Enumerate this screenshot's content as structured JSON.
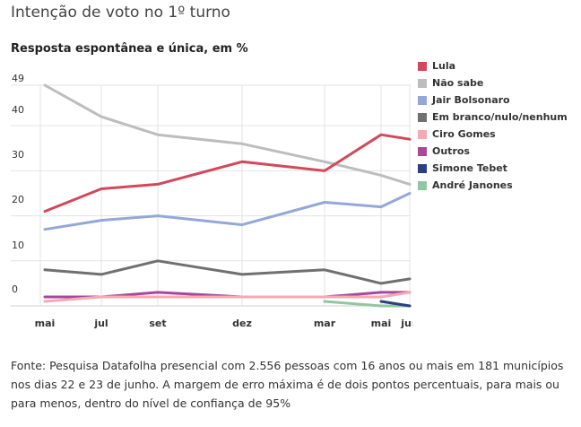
{
  "title": "Intenção de voto no 1º turno",
  "subtitle": "Resposta espontânea e única, em %",
  "source": "Fonte: Pesquisa Datafolha presencial com 2.556 pessoas com 16 anos ou mais em 181 municípios nos dias 22 e 23 de junho. A margem de erro máxima é de dois pontos percentuais, para mais ou para menos, dentro do nível de confiança de 95%",
  "chart_data": {
    "type": "line",
    "title": "Intenção de voto no 1º turno",
    "subtitle": "Resposta espontânea e única, em %",
    "x_ticks": [
      "mai",
      "jul",
      "set",
      "dez",
      "mar",
      "mai",
      "jun"
    ],
    "y_ticks": [
      "49",
      "40",
      "30",
      "20",
      "10",
      "0"
    ],
    "ylim": [
      0,
      49
    ],
    "grid": true,
    "legend_position": "right",
    "series": [
      {
        "name": "Lula",
        "color": "#d1495b",
        "start": 0,
        "values": [
          21,
          26,
          27,
          32,
          30,
          38,
          37
        ]
      },
      {
        "name": "Não sabe",
        "color": "#bdbdbd",
        "start": 0,
        "values": [
          49,
          42,
          38,
          36,
          32,
          29,
          27
        ]
      },
      {
        "name": "Jair Bolsonaro",
        "color": "#94a8d8",
        "start": 0,
        "values": [
          17,
          19,
          20,
          18,
          23,
          22,
          25
        ]
      },
      {
        "name": "Em branco/nulo/nenhum",
        "color": "#707070",
        "start": 0,
        "values": [
          8,
          7,
          10,
          7,
          8,
          5,
          6
        ]
      },
      {
        "name": "Ciro Gomes",
        "color": "#f4a9b5",
        "start": 0,
        "values": [
          1,
          2,
          2,
          2,
          2,
          2,
          3
        ]
      },
      {
        "name": "Outros",
        "color": "#a7489b",
        "start": 0,
        "values": [
          2,
          2,
          3,
          2,
          2,
          3,
          3
        ]
      },
      {
        "name": "Simone Tebet",
        "color": "#2c3f7f",
        "start": 5,
        "values": [
          1,
          0
        ]
      },
      {
        "name": "André Janones",
        "color": "#8fc7a0",
        "start": 4,
        "values": [
          1,
          0,
          0
        ]
      }
    ]
  }
}
